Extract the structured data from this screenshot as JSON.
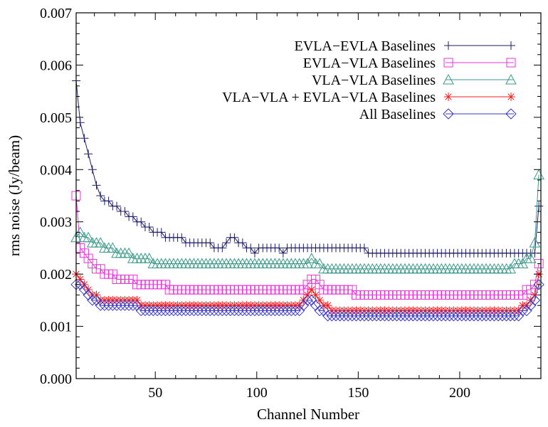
{
  "chart_data": {
    "type": "line",
    "title": "",
    "xlabel": "Channel Number",
    "ylabel": "rms noise (Jy/beam)",
    "xlim": [
      11,
      240
    ],
    "ylim": [
      0.0,
      0.007
    ],
    "x_ticks": [
      50,
      100,
      150,
      200
    ],
    "x_tick_labels": [
      "50",
      "100",
      "150",
      "200"
    ],
    "y_ticks": [
      0.0,
      0.001,
      0.002,
      0.003,
      0.004,
      0.005,
      0.006,
      0.007
    ],
    "y_tick_labels": [
      "0.000",
      "0.001",
      "0.002",
      "0.003",
      "0.004",
      "0.005",
      "0.006",
      "0.007"
    ],
    "grid": false,
    "legend_position": "top-right",
    "x_start": 11,
    "x_step": 2,
    "series": [
      {
        "name": "EVLA−EVLA Baselines",
        "color": "#1c1c6b",
        "marker": "plus",
        "values": [
          0.0057,
          0.0049,
          0.0046,
          0.0043,
          0.004,
          0.0037,
          0.0035,
          0.0034,
          0.0034,
          0.0033,
          0.0033,
          0.0032,
          0.0032,
          0.0031,
          0.0031,
          0.003,
          0.003,
          0.0029,
          0.0029,
          0.0028,
          0.0028,
          0.0028,
          0.0027,
          0.0027,
          0.0027,
          0.0027,
          0.0027,
          0.0026,
          0.0026,
          0.0026,
          0.0026,
          0.0026,
          0.0026,
          0.0026,
          0.0025,
          0.0025,
          0.0025,
          0.0026,
          0.0027,
          0.0027,
          0.0026,
          0.0026,
          0.0025,
          0.0025,
          0.0024,
          0.0025,
          0.0025,
          0.0025,
          0.0025,
          0.0025,
          0.0025,
          0.0024,
          0.0025,
          0.0025,
          0.0025,
          0.0025,
          0.0025,
          0.0025,
          0.0025,
          0.0025,
          0.0025,
          0.0025,
          0.0025,
          0.0025,
          0.0025,
          0.0025,
          0.0025,
          0.0025,
          0.0025,
          0.0025,
          0.0025,
          0.0025,
          0.0024,
          0.0024,
          0.0024,
          0.0024,
          0.0024,
          0.0024,
          0.0024,
          0.0024,
          0.0024,
          0.0024,
          0.0024,
          0.0024,
          0.0024,
          0.0024,
          0.0024,
          0.0024,
          0.0024,
          0.0024,
          0.0024,
          0.0024,
          0.0024,
          0.0024,
          0.0024,
          0.0024,
          0.0024,
          0.0024,
          0.0024,
          0.0024,
          0.0024,
          0.0024,
          0.0024,
          0.0024,
          0.0024,
          0.0024,
          0.0024,
          0.0024,
          0.0024,
          0.0024,
          0.0024,
          0.0024,
          0.0024,
          0.0024,
          0.0033
        ]
      },
      {
        "name": "EVLA−VLA Baselines",
        "color": "#ee33dd",
        "marker": "square",
        "values": [
          0.0035,
          0.0025,
          0.0024,
          0.0023,
          0.0022,
          0.0021,
          0.0021,
          0.002,
          0.002,
          0.002,
          0.0019,
          0.0019,
          0.0019,
          0.0019,
          0.0019,
          0.0018,
          0.0018,
          0.0018,
          0.0018,
          0.0018,
          0.0018,
          0.0018,
          0.0018,
          0.0017,
          0.0017,
          0.0017,
          0.0017,
          0.0017,
          0.0017,
          0.0017,
          0.0017,
          0.0017,
          0.0017,
          0.0017,
          0.0017,
          0.0017,
          0.0017,
          0.0017,
          0.0017,
          0.0017,
          0.0017,
          0.0017,
          0.0017,
          0.0017,
          0.0017,
          0.0017,
          0.0017,
          0.0017,
          0.0017,
          0.0017,
          0.0017,
          0.0017,
          0.0017,
          0.0017,
          0.0017,
          0.0017,
          0.0017,
          0.0018,
          0.0019,
          0.0019,
          0.0018,
          0.0017,
          0.0017,
          0.0017,
          0.0017,
          0.0017,
          0.0017,
          0.0017,
          0.0017,
          0.0016,
          0.0016,
          0.0016,
          0.0016,
          0.0016,
          0.0016,
          0.0016,
          0.0016,
          0.0016,
          0.0016,
          0.0016,
          0.0016,
          0.0016,
          0.0016,
          0.0016,
          0.0016,
          0.0016,
          0.0016,
          0.0016,
          0.0016,
          0.0016,
          0.0016,
          0.0016,
          0.0016,
          0.0016,
          0.0016,
          0.0016,
          0.0016,
          0.0016,
          0.0016,
          0.0016,
          0.0016,
          0.0016,
          0.0016,
          0.0016,
          0.0016,
          0.0016,
          0.0016,
          0.0016,
          0.0016,
          0.0016,
          0.0016,
          0.0017,
          0.0017,
          0.0018,
          0.0022
        ]
      },
      {
        "name": "VLA−VLA Baselines",
        "color": "#3a9a8a",
        "marker": "triangle",
        "values": [
          0.0027,
          0.0028,
          0.0027,
          0.0027,
          0.0026,
          0.0026,
          0.0026,
          0.0025,
          0.0025,
          0.0025,
          0.0024,
          0.0024,
          0.0024,
          0.0024,
          0.0023,
          0.0023,
          0.0023,
          0.0023,
          0.0023,
          0.0022,
          0.0022,
          0.0022,
          0.0022,
          0.0022,
          0.0022,
          0.0022,
          0.0022,
          0.0022,
          0.0022,
          0.0022,
          0.0022,
          0.0022,
          0.0022,
          0.0022,
          0.0022,
          0.0022,
          0.0022,
          0.0022,
          0.0022,
          0.0022,
          0.0022,
          0.0022,
          0.0022,
          0.0022,
          0.0022,
          0.0022,
          0.0022,
          0.0022,
          0.0022,
          0.0022,
          0.0022,
          0.0022,
          0.0022,
          0.0022,
          0.0022,
          0.0022,
          0.0022,
          0.0022,
          0.0023,
          0.0022,
          0.0022,
          0.0021,
          0.0021,
          0.0021,
          0.0021,
          0.0021,
          0.0021,
          0.0021,
          0.0021,
          0.0021,
          0.0021,
          0.0021,
          0.0021,
          0.0021,
          0.0021,
          0.0021,
          0.0021,
          0.0021,
          0.0021,
          0.0021,
          0.0021,
          0.0021,
          0.0021,
          0.0021,
          0.0021,
          0.0021,
          0.0021,
          0.0021,
          0.0021,
          0.0021,
          0.0021,
          0.0021,
          0.0021,
          0.0021,
          0.0021,
          0.0021,
          0.0021,
          0.0021,
          0.0021,
          0.0021,
          0.0021,
          0.0021,
          0.0021,
          0.0021,
          0.0021,
          0.0021,
          0.0021,
          0.0021,
          0.0022,
          0.0022,
          0.0022,
          0.0023,
          0.0023,
          0.0026,
          0.0039
        ]
      },
      {
        "name": "VLA−VLA + EVLA−VLA Baselines",
        "color": "#ff1a1a",
        "marker": "asterisk",
        "values": [
          0.002,
          0.0019,
          0.0018,
          0.0017,
          0.0016,
          0.0016,
          0.0015,
          0.0015,
          0.0015,
          0.0015,
          0.0015,
          0.0015,
          0.0015,
          0.0015,
          0.0015,
          0.0015,
          0.0014,
          0.0014,
          0.0014,
          0.0014,
          0.0014,
          0.0014,
          0.0014,
          0.0014,
          0.0014,
          0.0014,
          0.0014,
          0.0014,
          0.0014,
          0.0014,
          0.0014,
          0.0014,
          0.0014,
          0.0014,
          0.0014,
          0.0014,
          0.0014,
          0.0014,
          0.0014,
          0.0014,
          0.0014,
          0.0014,
          0.0014,
          0.0014,
          0.0014,
          0.0014,
          0.0014,
          0.0014,
          0.0014,
          0.0014,
          0.0014,
          0.0014,
          0.0014,
          0.0014,
          0.0014,
          0.0014,
          0.0015,
          0.0016,
          0.0017,
          0.0016,
          0.0015,
          0.0014,
          0.0014,
          0.0013,
          0.0013,
          0.0013,
          0.0013,
          0.0013,
          0.0013,
          0.0013,
          0.0013,
          0.0013,
          0.0013,
          0.0013,
          0.0013,
          0.0013,
          0.0013,
          0.0013,
          0.0013,
          0.0013,
          0.0013,
          0.0013,
          0.0013,
          0.0013,
          0.0013,
          0.0013,
          0.0013,
          0.0013,
          0.0013,
          0.0013,
          0.0013,
          0.0013,
          0.0013,
          0.0013,
          0.0013,
          0.0013,
          0.0013,
          0.0013,
          0.0013,
          0.0013,
          0.0013,
          0.0013,
          0.0013,
          0.0013,
          0.0013,
          0.0013,
          0.0013,
          0.0013,
          0.0013,
          0.0013,
          0.0014,
          0.0014,
          0.0015,
          0.0016,
          0.002
        ]
      },
      {
        "name": "All Baselines",
        "color": "#3a3acc",
        "marker": "diamond",
        "values": [
          0.0018,
          0.0018,
          0.0017,
          0.0016,
          0.0015,
          0.0015,
          0.0014,
          0.0014,
          0.0014,
          0.0014,
          0.0014,
          0.0014,
          0.0014,
          0.0014,
          0.0014,
          0.0014,
          0.0013,
          0.0013,
          0.0013,
          0.0013,
          0.0013,
          0.0013,
          0.0013,
          0.0013,
          0.0013,
          0.0013,
          0.0013,
          0.0013,
          0.0013,
          0.0013,
          0.0013,
          0.0013,
          0.0013,
          0.0013,
          0.0013,
          0.0013,
          0.0013,
          0.0013,
          0.0013,
          0.0013,
          0.0013,
          0.0013,
          0.0013,
          0.0013,
          0.0013,
          0.0013,
          0.0013,
          0.0013,
          0.0013,
          0.0013,
          0.0013,
          0.0013,
          0.0013,
          0.0013,
          0.0013,
          0.0013,
          0.0014,
          0.0015,
          0.0015,
          0.0014,
          0.0013,
          0.0013,
          0.0012,
          0.0012,
          0.0012,
          0.0012,
          0.0012,
          0.0012,
          0.0012,
          0.0012,
          0.0012,
          0.0012,
          0.0012,
          0.0012,
          0.0012,
          0.0012,
          0.0012,
          0.0012,
          0.0012,
          0.0012,
          0.0012,
          0.0012,
          0.0012,
          0.0012,
          0.0012,
          0.0012,
          0.0012,
          0.0012,
          0.0012,
          0.0012,
          0.0012,
          0.0012,
          0.0012,
          0.0012,
          0.0012,
          0.0012,
          0.0012,
          0.0012,
          0.0012,
          0.0012,
          0.0012,
          0.0012,
          0.0012,
          0.0012,
          0.0012,
          0.0012,
          0.0012,
          0.0012,
          0.0012,
          0.0012,
          0.0013,
          0.0013,
          0.0014,
          0.0015,
          0.0018
        ]
      }
    ]
  }
}
